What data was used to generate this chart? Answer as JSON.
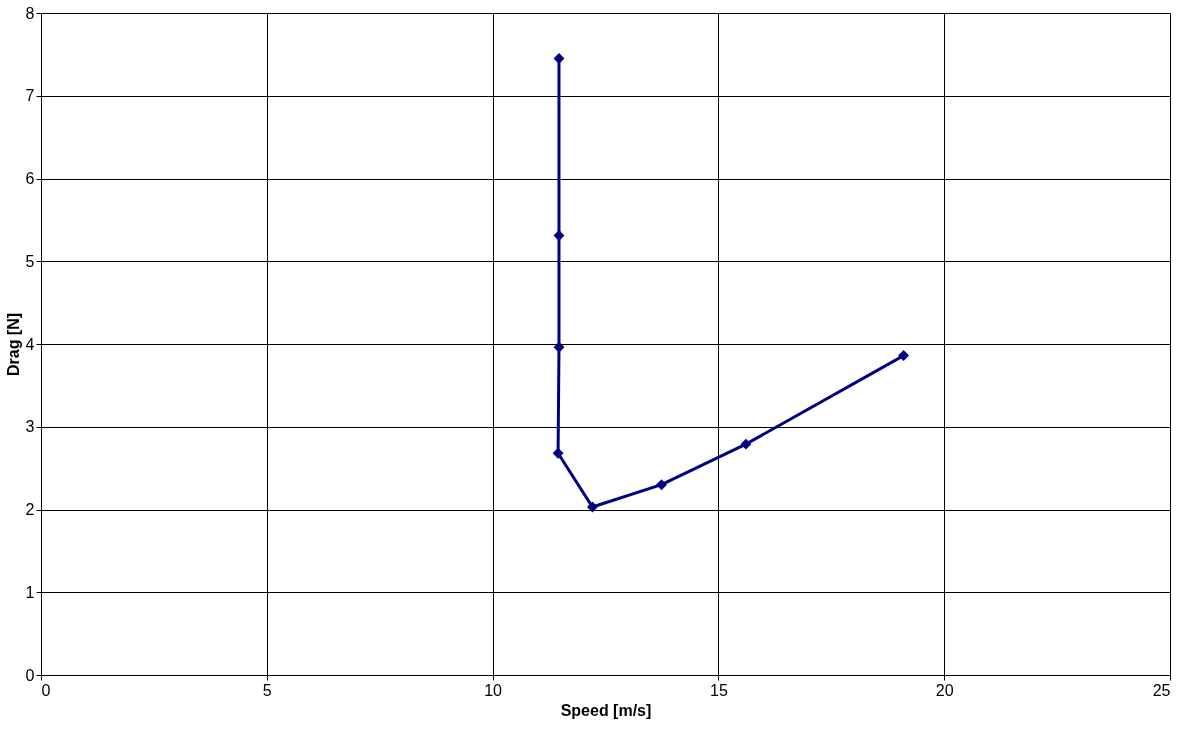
{
  "chart_data": {
    "type": "line",
    "xlabel": "Speed [m/s]",
    "ylabel": "Drag [N]",
    "x": [
      11.47,
      11.47,
      11.47,
      11.45,
      12.21,
      13.74,
      15.61,
      19.1
    ],
    "series": [
      {
        "color": "#000080",
        "values": [
          7.45,
          5.31,
          3.96,
          2.68,
          2.03,
          2.3,
          2.79,
          3.86
        ]
      }
    ],
    "xlim": [
      0,
      25
    ],
    "xticks": [
      0,
      5,
      10,
      15,
      20,
      25
    ],
    "ylim": [
      0,
      8
    ],
    "yticks": [
      0,
      1,
      2,
      3,
      4,
      5,
      6,
      7,
      8
    ],
    "grid": true,
    "marker": "diamond",
    "line_style": "solid"
  }
}
